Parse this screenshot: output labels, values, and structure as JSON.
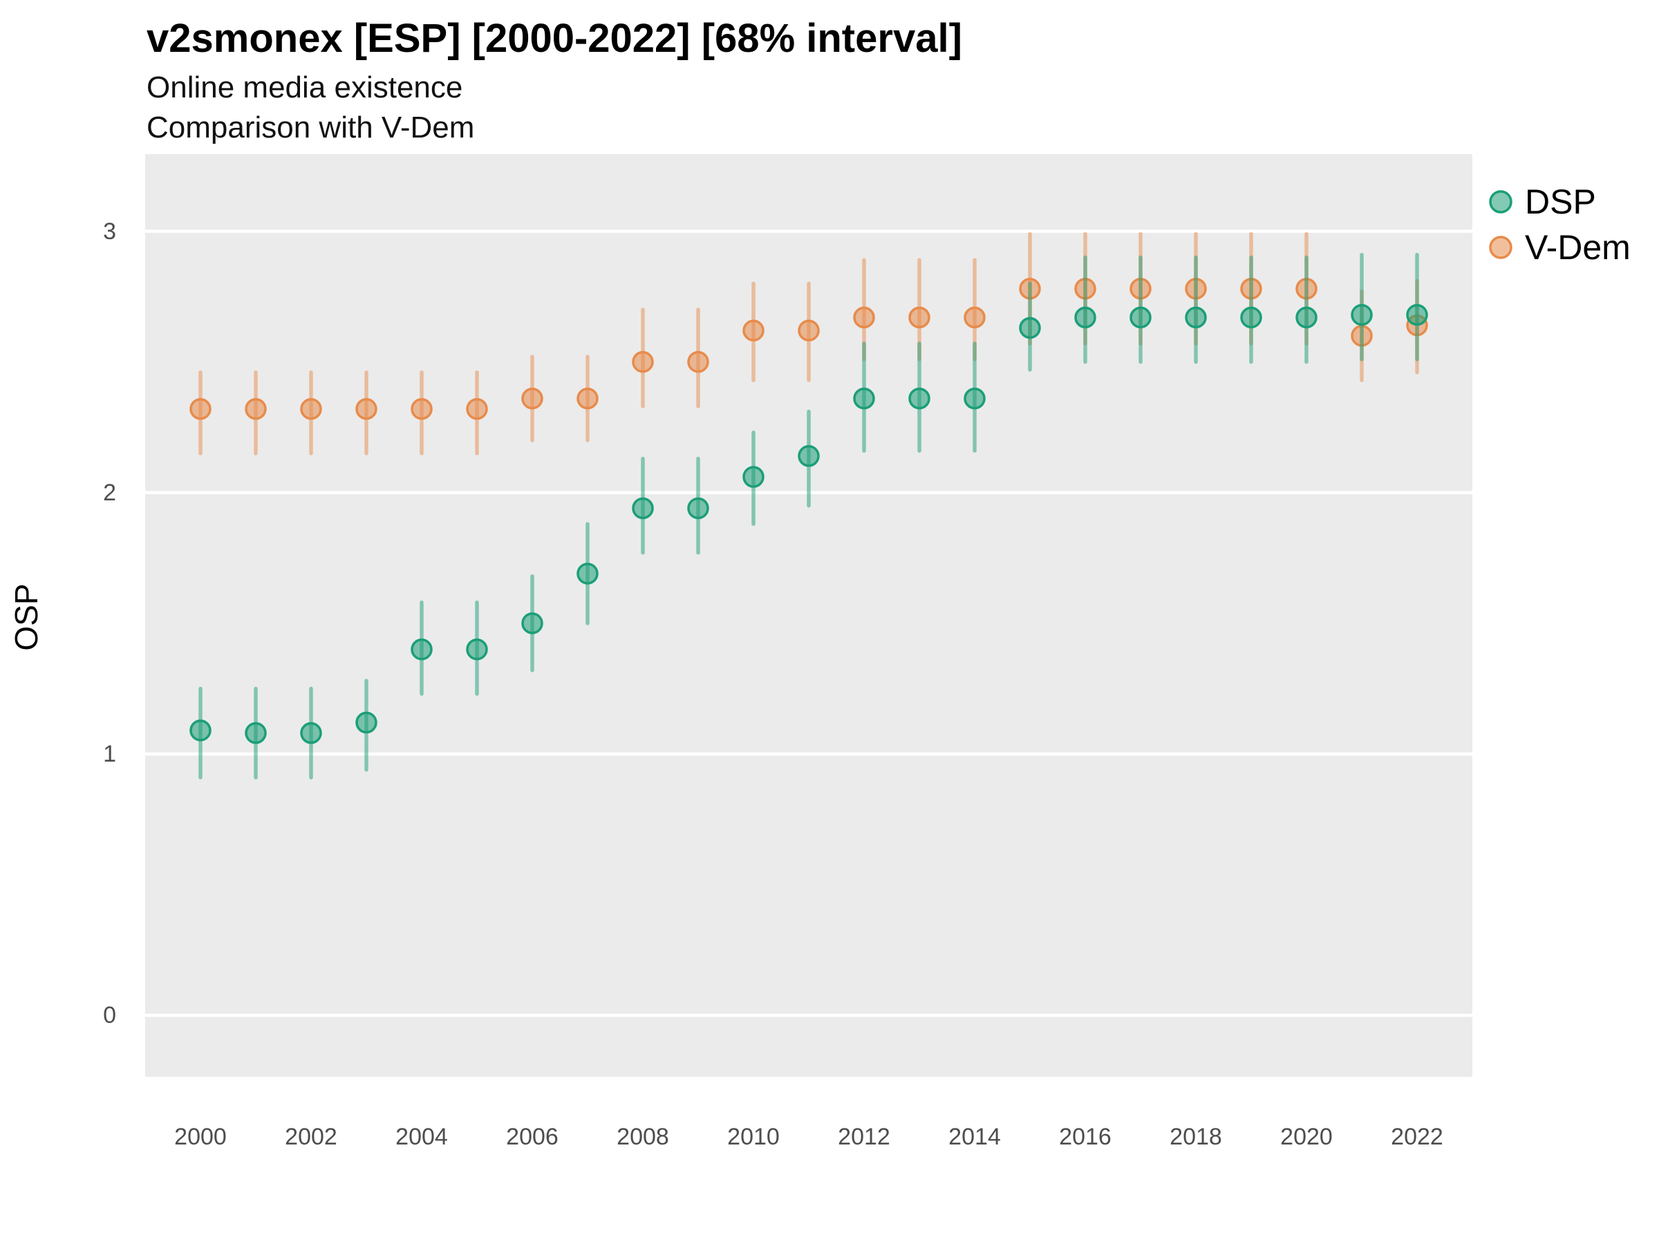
{
  "header": {
    "title": "v2smonex [ESP] [2000-2022] [68% interval]",
    "subtitle_line1": "Online media existence",
    "subtitle_line2": "Comparison with V-Dem"
  },
  "y_axis_label": "OSP",
  "chart_data": {
    "type": "pointrange-scatter",
    "title": "v2smonex [ESP] [2000-2022] [68% interval]",
    "subtitle": [
      "Online media existence",
      "Comparison with V-Dem"
    ],
    "interval": "68%",
    "xlabel": "",
    "ylabel": "OSP",
    "x": [
      2000,
      2001,
      2002,
      2003,
      2004,
      2005,
      2006,
      2007,
      2008,
      2009,
      2010,
      2011,
      2012,
      2013,
      2014,
      2015,
      2016,
      2017,
      2018,
      2019,
      2020,
      2021,
      2022
    ],
    "series": [
      {
        "name": "DSP",
        "color": "#1B9E77",
        "draw_index": 1,
        "values": [
          1.09,
          1.08,
          1.08,
          1.12,
          1.4,
          1.4,
          1.5,
          1.69,
          1.94,
          1.94,
          2.06,
          2.14,
          2.36,
          2.36,
          2.36,
          2.63,
          2.67,
          2.67,
          2.67,
          2.67,
          2.67,
          2.68,
          2.68
        ],
        "lo": [
          0.91,
          0.91,
          0.91,
          0.94,
          1.23,
          1.23,
          1.32,
          1.5,
          1.77,
          1.77,
          1.88,
          1.95,
          2.16,
          2.16,
          2.16,
          2.47,
          2.5,
          2.5,
          2.5,
          2.5,
          2.5,
          2.51,
          2.51
        ],
        "hi": [
          1.25,
          1.25,
          1.25,
          1.28,
          1.58,
          1.58,
          1.68,
          1.88,
          2.13,
          2.13,
          2.23,
          2.31,
          2.57,
          2.57,
          2.57,
          2.8,
          2.9,
          2.9,
          2.9,
          2.9,
          2.9,
          2.91,
          2.91
        ]
      },
      {
        "name": "V-Dem",
        "color": "#E78B4B",
        "draw_index": 0,
        "values": [
          2.32,
          2.32,
          2.32,
          2.32,
          2.32,
          2.32,
          2.36,
          2.36,
          2.5,
          2.5,
          2.62,
          2.62,
          2.67,
          2.67,
          2.67,
          2.78,
          2.78,
          2.78,
          2.78,
          2.78,
          2.78,
          2.6,
          2.64
        ],
        "lo": [
          2.15,
          2.15,
          2.15,
          2.15,
          2.15,
          2.15,
          2.2,
          2.2,
          2.33,
          2.33,
          2.43,
          2.43,
          2.51,
          2.51,
          2.51,
          2.57,
          2.57,
          2.57,
          2.57,
          2.57,
          2.57,
          2.43,
          2.46
        ],
        "hi": [
          2.46,
          2.46,
          2.46,
          2.46,
          2.46,
          2.46,
          2.52,
          2.52,
          2.7,
          2.7,
          2.8,
          2.8,
          2.89,
          2.89,
          2.89,
          2.99,
          2.99,
          2.99,
          2.99,
          2.99,
          2.99,
          2.77,
          2.81
        ]
      }
    ],
    "x_ticks": [
      2000,
      2002,
      2004,
      2006,
      2008,
      2010,
      2012,
      2014,
      2016,
      2018,
      2020,
      2022
    ],
    "y_ticks": [
      0,
      1,
      2,
      3
    ],
    "xlim": [
      1999.0,
      2023.0
    ],
    "ylim": [
      -0.235,
      3.295
    ],
    "legend_position": "right-top",
    "panel_background": "#ebebeb",
    "grid": "major-horizontal-white",
    "style": {
      "line_opacity": 0.5,
      "fill_opacity": 0.55,
      "line_width": 5.5,
      "point_radius": 14,
      "point_stroke_width": 3.5
    }
  }
}
